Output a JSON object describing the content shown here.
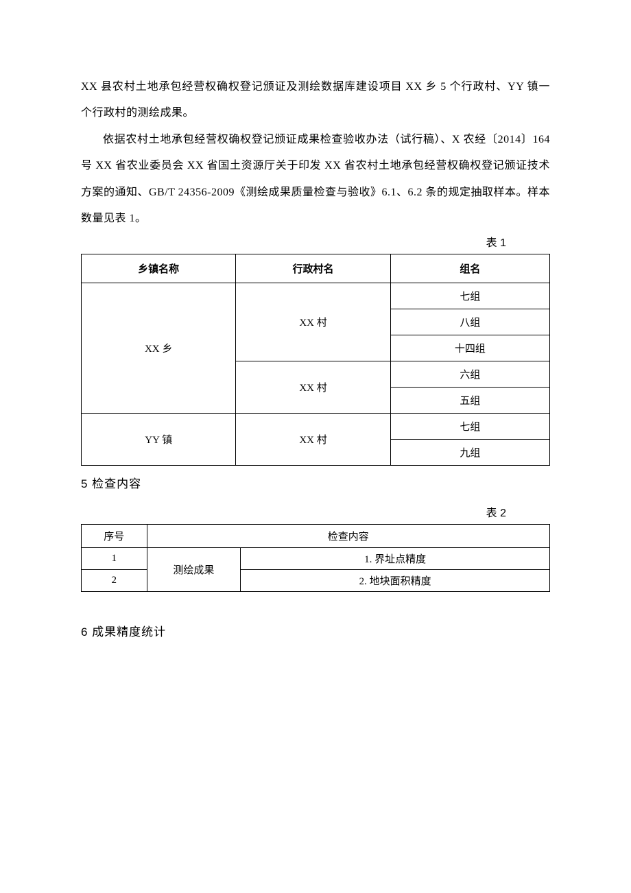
{
  "paragraphs": {
    "p1": "XX 县农村土地承包经营权确权登记颁证及测绘数据库建设项目 XX 乡 5 个行政村、YY 镇一个行政村的测绘成果。",
    "p2": "依据农村土地承包经营权确权登记颁证成果检查验收办法（试行稿）、X 农经〔2014〕164 号 XX 省农业委员会 XX 省国土资源厅关于印发 XX 省农村土地承包经营权确权登记颁证技术方案的通知、GB/T 24356-2009《测绘成果质量检查与验收》6.1、6.2 条的规定抽取样本。样本数量见表 1。"
  },
  "table1": {
    "label": "表 1",
    "headers": {
      "town": "乡镇名称",
      "village": "行政村名",
      "group": "组名"
    },
    "rows": [
      {
        "town": "XX 乡",
        "town_rowspan": 5,
        "village": "XX 村",
        "village_rowspan": 3,
        "group": "七组"
      },
      {
        "group": "八组"
      },
      {
        "group": "十四组"
      },
      {
        "village": "XX 村",
        "village_rowspan": 2,
        "group": "六组"
      },
      {
        "group": "五组"
      },
      {
        "town": "YY 镇",
        "town_rowspan": 2,
        "village": "XX 村",
        "village_rowspan": 2,
        "group": "七组"
      },
      {
        "group": "九组"
      }
    ]
  },
  "section5": {
    "title": "5  检查内容"
  },
  "table2": {
    "label": "表 2",
    "headers": {
      "seq": "序号",
      "content": "检查内容"
    },
    "category": "测绘成果",
    "rows": [
      {
        "seq": "1",
        "item": "1. 界址点精度"
      },
      {
        "seq": "2",
        "item": "2. 地块面积精度"
      }
    ]
  },
  "section6": {
    "title": "6 成果精度统计"
  }
}
